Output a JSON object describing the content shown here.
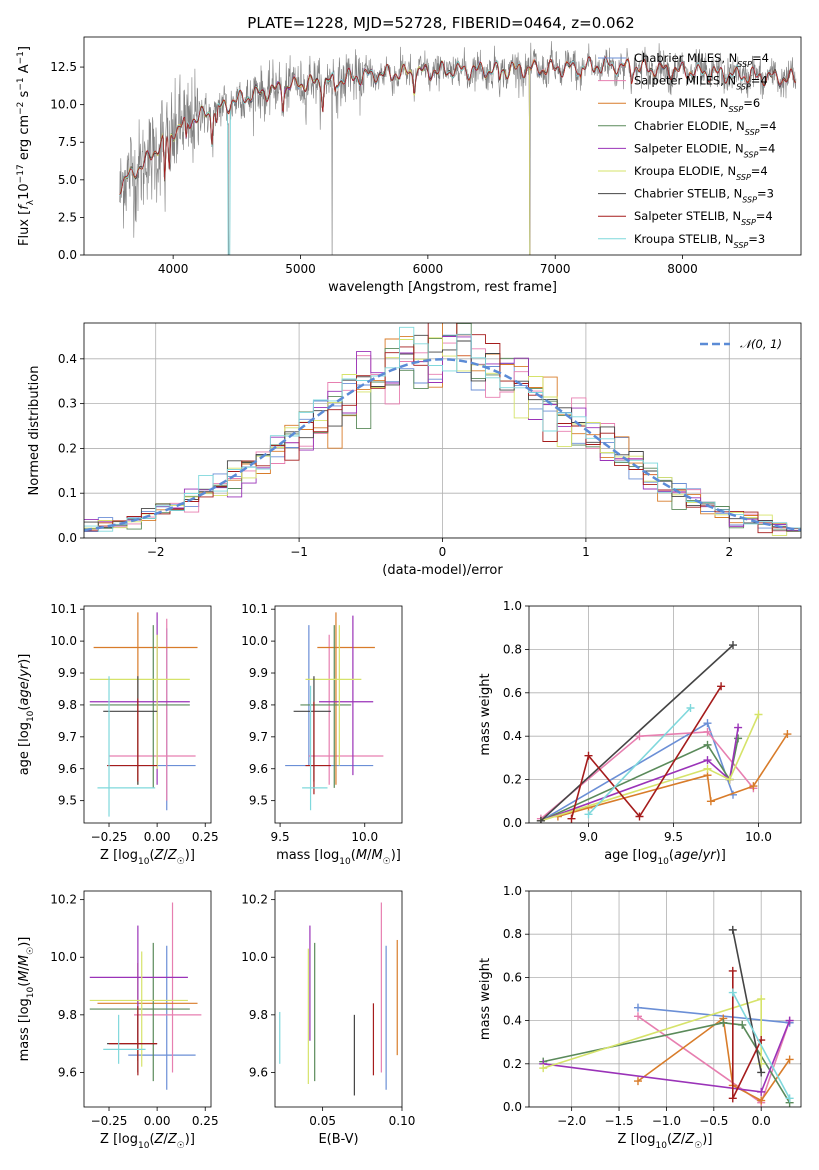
{
  "figure": {
    "title": "PLATE=1228, MJD=52728, FIBERID=0464, z=0.062",
    "colors": {
      "Chabrier MILES": "#6b8fd6",
      "Salpeter MILES": "#e77fb0",
      "Kroupa MILES": "#d87c2a",
      "Chabrier ELODIE": "#5a8a5a",
      "Salpeter ELODIE": "#9a33b8",
      "Kroupa ELODIE": "#d6e36a",
      "Chabrier STELIB": "#444444",
      "Salpeter STELIB": "#a51c1c",
      "Kroupa STELIB": "#7fd8dc",
      "data": "#808080",
      "gaussian": "#5b8bd6"
    }
  },
  "chart_data": [
    {
      "id": "spectrum",
      "type": "line",
      "xlabel": "wavelength [Angstrom, rest frame]",
      "ylabel": "Flux [f_λ10^−17 erg cm^−2 s^−1 A^−1]",
      "xlim": [
        3300,
        8930
      ],
      "ylim": [
        0,
        14.5
      ],
      "xticks": [
        4000,
        5000,
        6000,
        7000,
        8000
      ],
      "yticks": [
        0.0,
        2.5,
        5.0,
        7.5,
        10.0,
        12.5
      ],
      "grid": false,
      "legend_position": "right",
      "continuum": [
        [
          3580,
          4.6
        ],
        [
          3700,
          5.6
        ],
        [
          3800,
          6.3
        ],
        [
          3900,
          7.4
        ],
        [
          4000,
          8.2
        ],
        [
          4100,
          8.8
        ],
        [
          4200,
          9.2
        ],
        [
          4300,
          9.5
        ],
        [
          4400,
          9.9
        ],
        [
          4500,
          10.3
        ],
        [
          4600,
          10.6
        ],
        [
          4700,
          10.8
        ],
        [
          4800,
          11.0
        ],
        [
          5000,
          11.4
        ],
        [
          5200,
          11.5
        ],
        [
          5400,
          11.8
        ],
        [
          5600,
          12.0
        ],
        [
          5800,
          12.1
        ],
        [
          6000,
          12.2
        ],
        [
          6200,
          12.3
        ],
        [
          6400,
          12.3
        ],
        [
          6600,
          12.3
        ],
        [
          6800,
          12.4
        ],
        [
          7000,
          12.4
        ],
        [
          7200,
          12.5
        ],
        [
          7400,
          12.6
        ]
      ],
      "series": [
        {
          "name": "Chabrier MILES, N_SSP=4",
          "wmax": 8890
        },
        {
          "name": "Salpeter MILES, N_SSP=4",
          "wmax": 8890
        },
        {
          "name": "Kroupa MILES, N_SSP=6",
          "wmax": 8890
        },
        {
          "name": "Chabrier ELODIE, N_SSP=4",
          "wmax": 6800
        },
        {
          "name": "Salpeter ELODIE, N_SSP=4",
          "wmax": 6800
        },
        {
          "name": "Kroupa ELODIE, N_SSP=4",
          "wmax": 6800
        },
        {
          "name": "Chabrier STELIB, N_SSP=3",
          "wmax": 8890
        },
        {
          "name": "Salpeter STELIB, N_SSP=4",
          "wmax": 8890
        },
        {
          "name": "Kroupa STELIB, N_SSP=3",
          "wmax": 8890
        }
      ]
    },
    {
      "id": "residuals",
      "type": "step",
      "xlabel": "(data-model)/error",
      "ylabel": "Normed distribution",
      "xlim": [
        -2.5,
        2.5
      ],
      "ylim": [
        0,
        0.48
      ],
      "xticks": [
        -2,
        -1,
        0,
        1,
        2
      ],
      "yticks": [
        0.0,
        0.1,
        0.2,
        0.3,
        0.4
      ],
      "grid": true,
      "legend": "𝒩(0, 1)",
      "legend_position": "top-right"
    },
    {
      "id": "age_vs_Z",
      "type": "errorbar",
      "xlabel": "Z [log10(Z/Z☉)]",
      "ylabel": "age  [log10(age/yr)]",
      "xlim": [
        -0.38,
        0.28
      ],
      "ylim": [
        9.43,
        10.11
      ],
      "xticks": [
        -0.25,
        0.0,
        0.25
      ],
      "yticks": [
        9.5,
        9.6,
        9.7,
        9.8,
        9.9,
        10.0,
        10.1
      ],
      "points": [
        {
          "model": "Chabrier MILES",
          "x": 0.05,
          "y": 9.61,
          "xerr": [
            0.3,
            0.15
          ],
          "yerr": [
            0.14,
            0.43
          ]
        },
        {
          "model": "Salpeter MILES",
          "x": 0.05,
          "y": 9.64,
          "xerr": [
            0.3,
            0.15
          ],
          "yerr": [
            0.14,
            0.43
          ]
        },
        {
          "model": "Kroupa MILES",
          "x": -0.1,
          "y": 9.98,
          "xerr": [
            0.23,
            0.31
          ],
          "yerr": [
            0.43,
            0.11
          ]
        },
        {
          "model": "Chabrier ELODIE",
          "x": -0.02,
          "y": 9.8,
          "xerr": [
            0.33,
            0.19
          ],
          "yerr": [
            0.26,
            0.25
          ]
        },
        {
          "model": "Salpeter ELODIE",
          "x": 0.0,
          "y": 9.81,
          "xerr": [
            0.35,
            0.17
          ],
          "yerr": [
            0.26,
            0.28
          ]
        },
        {
          "model": "Kroupa ELODIE",
          "x": 0.0,
          "y": 9.88,
          "xerr": [
            0.35,
            0.17
          ],
          "yerr": [
            0.28,
            0.14
          ]
        },
        {
          "model": "Chabrier STELIB",
          "x": -0.1,
          "y": 9.78,
          "xerr": [
            0.18,
            0.1
          ],
          "yerr": [
            0.23,
            0.11
          ]
        },
        {
          "model": "Salpeter STELIB",
          "x": -0.1,
          "y": 9.61,
          "xerr": [
            0.16,
            0.1
          ],
          "yerr": [
            0.05,
            0.21
          ]
        },
        {
          "model": "Kroupa STELIB",
          "x": -0.25,
          "y": 9.54,
          "xerr": [
            0.06,
            0.24
          ],
          "yerr": [
            0.09,
            0.35
          ]
        }
      ]
    },
    {
      "id": "age_vs_mass",
      "type": "errorbar",
      "xlabel": "mass [log10(M/M☉)]",
      "ylabel": "",
      "xlim": [
        9.47,
        10.22
      ],
      "ylim": [
        9.43,
        10.11
      ],
      "xticks": [
        9.5,
        10.0
      ],
      "yticks": [
        9.5,
        9.6,
        9.7,
        9.8,
        9.9,
        10.0,
        10.1
      ],
      "points": [
        {
          "model": "Chabrier MILES",
          "x": 9.67,
          "y": 9.61,
          "xerr": [
            0.14,
            0.38
          ],
          "yerr": [
            0.0,
            0.44
          ]
        },
        {
          "model": "Salpeter MILES",
          "x": 9.79,
          "y": 9.64,
          "xerr": [
            0.12,
            0.32
          ],
          "yerr": [
            0.09,
            0.38
          ]
        },
        {
          "model": "Kroupa MILES",
          "x": 9.83,
          "y": 9.98,
          "xerr": [
            0.11,
            0.23
          ],
          "yerr": [
            0.43,
            0.11
          ]
        },
        {
          "model": "Chabrier ELODIE",
          "x": 9.82,
          "y": 9.8,
          "xerr": [
            0.2,
            0.1
          ],
          "yerr": [
            0.26,
            0.25
          ]
        },
        {
          "model": "Salpeter ELODIE",
          "x": 9.93,
          "y": 9.81,
          "xerr": [
            0.2,
            0.12
          ],
          "yerr": [
            0.23,
            0.27
          ]
        },
        {
          "model": "Kroupa ELODIE",
          "x": 9.85,
          "y": 9.88,
          "xerr": [
            0.2,
            0.13
          ],
          "yerr": [
            0.27,
            0.17
          ]
        },
        {
          "model": "Chabrier STELIB",
          "x": 9.7,
          "y": 9.78,
          "xerr": [
            0.12,
            0.1
          ],
          "yerr": [
            0.22,
            0.11
          ]
        },
        {
          "model": "Salpeter STELIB",
          "x": 9.7,
          "y": 9.61,
          "xerr": [
            0.05,
            0.1
          ],
          "yerr": [
            0.09,
            0.2
          ]
        },
        {
          "model": "Kroupa STELIB",
          "x": 9.68,
          "y": 9.54,
          "xerr": [
            0.05,
            0.1
          ],
          "yerr": [
            0.07,
            0.32
          ]
        }
      ]
    },
    {
      "id": "weight_vs_age",
      "type": "line-marker",
      "xlabel": "age  [log10(age/yr)]",
      "ylabel": "mass weight",
      "xlim": [
        8.65,
        10.25
      ],
      "ylim": [
        0,
        1.0
      ],
      "xticks": [
        9.0,
        9.5,
        10.0
      ],
      "yticks": [
        0.0,
        0.2,
        0.4,
        0.6,
        0.8,
        1.0
      ],
      "grid": true,
      "series": [
        {
          "name": "Chabrier MILES",
          "x": [
            8.72,
            9.7,
            9.85
          ],
          "y": [
            0.01,
            0.46,
            0.13
          ]
        },
        {
          "name": "Salpeter MILES",
          "x": [
            8.72,
            9.3,
            9.7,
            9.97
          ],
          "y": [
            0.02,
            0.4,
            0.42,
            0.16
          ]
        },
        {
          "name": "Kroupa MILES",
          "x": [
            8.82,
            9.0,
            9.7,
            9.72,
            9.97,
            10.17
          ],
          "y": [
            0.03,
            0.07,
            0.22,
            0.1,
            0.17,
            0.41
          ]
        },
        {
          "name": "Chabrier ELODIE",
          "x": [
            8.72,
            9.7,
            9.83,
            9.88
          ],
          "y": [
            0.01,
            0.36,
            0.2,
            0.39
          ]
        },
        {
          "name": "Salpeter ELODIE",
          "x": [
            8.72,
            9.7,
            9.83,
            9.88
          ],
          "y": [
            0.01,
            0.29,
            0.2,
            0.44
          ]
        },
        {
          "name": "Kroupa ELODIE",
          "x": [
            8.72,
            9.7,
            9.83,
            10.0
          ],
          "y": [
            0.01,
            0.25,
            0.2,
            0.5
          ]
        },
        {
          "name": "Chabrier STELIB",
          "x": [
            8.72,
            9.85
          ],
          "y": [
            0.01,
            0.82
          ]
        },
        {
          "name": "Salpeter STELIB",
          "x": [
            8.9,
            9.0,
            9.3,
            9.78
          ],
          "y": [
            0.02,
            0.31,
            0.03,
            0.63
          ]
        },
        {
          "name": "Kroupa STELIB",
          "x": [
            9.0,
            9.6
          ],
          "y": [
            0.04,
            0.53
          ]
        }
      ]
    },
    {
      "id": "mass_vs_Z",
      "type": "errorbar",
      "xlabel": "Z [log10(Z/Z☉)]",
      "ylabel": "mass [log10(M/M☉)]",
      "xlim": [
        -0.38,
        0.28
      ],
      "ylim": [
        9.48,
        10.23
      ],
      "xticks": [
        -0.25,
        0.0,
        0.25
      ],
      "yticks": [
        9.6,
        9.8,
        10.0,
        10.2
      ],
      "points": [
        {
          "model": "Chabrier MILES",
          "x": 0.05,
          "y": 9.66,
          "xerr": [
            0.2,
            0.15
          ],
          "yerr": [
            0.12,
            0.38
          ]
        },
        {
          "model": "Salpeter MILES",
          "x": 0.08,
          "y": 9.8,
          "xerr": [
            0.2,
            0.15
          ],
          "yerr": [
            0.2,
            0.39
          ]
        },
        {
          "model": "Kroupa MILES",
          "x": -0.1,
          "y": 9.84,
          "xerr": [
            0.21,
            0.31
          ],
          "yerr": [
            0.2,
            0.14
          ]
        },
        {
          "model": "Chabrier ELODIE",
          "x": -0.02,
          "y": 9.82,
          "xerr": [
            0.33,
            0.19
          ],
          "yerr": [
            0.25,
            0.23
          ]
        },
        {
          "model": "Salpeter ELODIE",
          "x": -0.1,
          "y": 9.93,
          "xerr": [
            0.25,
            0.26
          ],
          "yerr": [
            0.22,
            0.18
          ]
        },
        {
          "model": "Kroupa ELODIE",
          "x": -0.08,
          "y": 9.85,
          "xerr": [
            0.27,
            0.24
          ],
          "yerr": [
            0.23,
            0.17
          ]
        },
        {
          "model": "Chabrier STELIB",
          "x": -0.1,
          "y": 9.7,
          "xerr": [
            0.16,
            0.1
          ],
          "yerr": [
            0.1,
            0.1
          ]
        },
        {
          "model": "Salpeter STELIB",
          "x": -0.1,
          "y": 9.7,
          "xerr": [
            0.15,
            0.1
          ],
          "yerr": [
            0.11,
            0.13
          ]
        },
        {
          "model": "Kroupa STELIB",
          "x": -0.2,
          "y": 9.68,
          "xerr": [
            0.08,
            0.14
          ],
          "yerr": [
            0.05,
            0.12
          ]
        }
      ]
    },
    {
      "id": "mass_vs_ebv",
      "type": "errorbar",
      "xlabel": "E(B-V)",
      "ylabel": "",
      "xlim": [
        0.02,
        0.1
      ],
      "ylim": [
        9.48,
        10.23
      ],
      "xticks": [
        0.05,
        0.1
      ],
      "yticks": [
        9.6,
        9.8,
        10.0,
        10.2
      ],
      "points": [
        {
          "model": "Chabrier MILES",
          "x": 0.09,
          "y": 9.66,
          "yerr": [
            0.12,
            0.38
          ]
        },
        {
          "model": "Salpeter MILES",
          "x": 0.087,
          "y": 9.8,
          "yerr": [
            0.2,
            0.39
          ]
        },
        {
          "model": "Kroupa MILES",
          "x": 0.097,
          "y": 9.84,
          "yerr": [
            0.18,
            0.22
          ]
        },
        {
          "model": "Chabrier ELODIE",
          "x": 0.045,
          "y": 9.82,
          "yerr": [
            0.25,
            0.23
          ]
        },
        {
          "model": "Salpeter ELODIE",
          "x": 0.042,
          "y": 9.93,
          "yerr": [
            0.22,
            0.18
          ]
        },
        {
          "model": "Kroupa ELODIE",
          "x": 0.041,
          "y": 9.85,
          "yerr": [
            0.29,
            0.18
          ]
        },
        {
          "model": "Chabrier STELIB",
          "x": 0.07,
          "y": 9.7,
          "yerr": [
            0.18,
            0.1
          ]
        },
        {
          "model": "Salpeter STELIB",
          "x": 0.082,
          "y": 9.7,
          "yerr": [
            0.11,
            0.14
          ]
        },
        {
          "model": "Kroupa STELIB",
          "x": 0.023,
          "y": 9.72,
          "yerr": [
            0.09,
            0.09
          ]
        }
      ]
    },
    {
      "id": "weight_vs_Z",
      "type": "line-marker",
      "xlabel": "Z [log10(Z/Z☉)]",
      "ylabel": "mass weight",
      "xlim": [
        -2.45,
        0.42
      ],
      "ylim": [
        0,
        1.0
      ],
      "xticks": [
        -2.0,
        -1.5,
        -1.0,
        -0.5,
        0.0
      ],
      "yticks": [
        0.0,
        0.2,
        0.4,
        0.6,
        0.8,
        1.0
      ],
      "grid": true,
      "series": [
        {
          "name": "Chabrier MILES",
          "x": [
            -1.3,
            0.3
          ],
          "y": [
            0.46,
            0.39
          ]
        },
        {
          "name": "Salpeter MILES",
          "x": [
            -1.3,
            0.0,
            0.3
          ],
          "y": [
            0.42,
            0.02,
            0.4
          ]
        },
        {
          "name": "Kroupa MILES",
          "x": [
            -1.3,
            -0.4,
            -0.3,
            0.0,
            0.3
          ],
          "y": [
            0.12,
            0.41,
            0.1,
            0.03,
            0.22
          ]
        },
        {
          "name": "Chabrier ELODIE",
          "x": [
            -2.3,
            -0.4,
            -0.2,
            0.3
          ],
          "y": [
            0.21,
            0.39,
            0.38,
            0.02
          ]
        },
        {
          "name": "Salpeter ELODIE",
          "x": [
            -2.3,
            0.0,
            0.3
          ],
          "y": [
            0.2,
            0.07,
            0.4
          ]
        },
        {
          "name": "Kroupa ELODIE",
          "x": [
            -2.3,
            0.0,
            0.0
          ],
          "y": [
            0.18,
            0.5,
            0.2
          ]
        },
        {
          "name": "Chabrier STELIB",
          "x": [
            -0.3,
            0.0
          ],
          "y": [
            0.82,
            0.16
          ]
        },
        {
          "name": "Salpeter STELIB",
          "x": [
            -0.3,
            -0.3,
            0.0
          ],
          "y": [
            0.63,
            0.04,
            0.31
          ]
        },
        {
          "name": "Kroupa STELIB",
          "x": [
            -0.3,
            0.3
          ],
          "y": [
            0.53,
            0.04
          ]
        }
      ]
    }
  ]
}
